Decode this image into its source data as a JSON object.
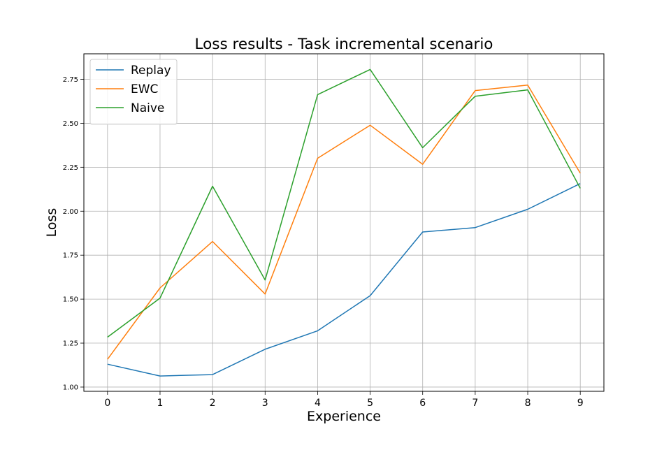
{
  "chart_data": {
    "type": "line",
    "title": "Loss results - Task incremental scenario",
    "xlabel": "Experience",
    "ylabel": "Loss",
    "x": [
      0,
      1,
      2,
      3,
      4,
      5,
      6,
      7,
      8,
      9
    ],
    "xlim": [
      -0.45,
      9.45
    ],
    "ylim": [
      0.976,
      2.895
    ],
    "x_ticks": [
      "0",
      "1",
      "2",
      "3",
      "4",
      "5",
      "6",
      "7",
      "8",
      "9"
    ],
    "y_ticks": [
      "1.00",
      "1.25",
      "1.50",
      "1.75",
      "2.00",
      "2.25",
      "2.50",
      "2.75"
    ],
    "y_tick_values": [
      1.0,
      1.25,
      1.5,
      1.75,
      2.0,
      2.25,
      2.5,
      2.75
    ],
    "grid": true,
    "legend_position": "top-left",
    "series": [
      {
        "name": "Replay",
        "color": "#1f77b4",
        "values": [
          1.13,
          1.063,
          1.071,
          1.215,
          1.32,
          1.52,
          1.882,
          1.907,
          2.011,
          2.157
        ]
      },
      {
        "name": "EWC",
        "color": "#ff7f0e",
        "values": [
          1.158,
          1.564,
          1.828,
          1.529,
          2.301,
          2.489,
          2.267,
          2.686,
          2.717,
          2.216
        ]
      },
      {
        "name": "Naive",
        "color": "#2ca02c",
        "values": [
          1.284,
          1.506,
          2.142,
          1.609,
          2.663,
          2.806,
          2.361,
          2.654,
          2.69,
          2.13
        ]
      }
    ]
  }
}
